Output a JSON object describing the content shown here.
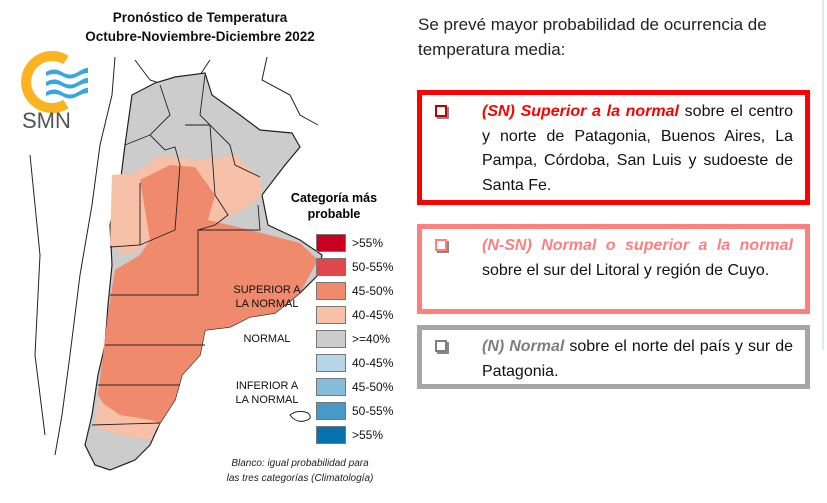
{
  "map": {
    "title_line1": "Pronóstico de Temperatura",
    "title_line2": "Octubre-Noviembre-Diciembre 2022",
    "logo_text": "SMN",
    "legend": {
      "title_line1": "Categoría más",
      "title_line2": "probable",
      "items": [
        {
          "label": ">55%",
          "color": "#ca0020"
        },
        {
          "label": "50-55%",
          "color": "#e0474d"
        },
        {
          "label": "45-50%",
          "color": "#f08a6c"
        },
        {
          "label": "40-45%",
          "color": "#f6c1a8"
        },
        {
          "label": ">=40%",
          "color": "#cccccc"
        },
        {
          "label": "40-45%",
          "color": "#b6d6e8"
        },
        {
          "label": "45-50%",
          "color": "#86bcdb"
        },
        {
          "label": "50-55%",
          "color": "#4898c8"
        },
        {
          "label": ">55%",
          "color": "#0872b0"
        }
      ],
      "groups": {
        "superior_line1": "SUPERIOR A",
        "superior_line2": "LA NORMAL",
        "normal": "NORMAL",
        "inferior_line1": "INFERIOR A",
        "inferior_line2": "LA NORMAL"
      }
    },
    "footnote_line1": "Blanco: igual probabilidad para",
    "footnote_line2": "las tres categorías (Climatología)"
  },
  "summary": {
    "intro": "Se prevé mayor probabilidad de ocurrencia de temperatura media:",
    "items": [
      {
        "lead": "(SN) Superior a la normal",
        "text": " sobre el centro y norte de Patagonia, Buenos Aires, La Pampa, Córdoba, San Luis y sudoeste de Santa Fe.",
        "color": "#ff0000"
      },
      {
        "lead": "(N-SN) Normal o superior a la normal",
        "text": " sobre el sur del Litoral y región de Cuyo.",
        "color": "#ff7f7f"
      },
      {
        "lead": "(N) Normal",
        "text": " sobre el norte del país y sur de Patagonia.",
        "color": "#7f7f7f"
      }
    ]
  }
}
